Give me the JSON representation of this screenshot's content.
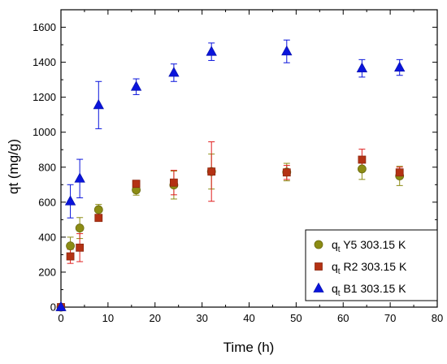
{
  "chart_data": {
    "type": "scatter",
    "title": "",
    "xlabel": "Time (h)",
    "ylabel": "qt (mg/g)",
    "xlim": [
      0,
      80
    ],
    "ylim": [
      0,
      1700
    ],
    "xticks": [
      0,
      10,
      20,
      30,
      40,
      50,
      60,
      70,
      80
    ],
    "yticks": [
      0,
      200,
      400,
      600,
      800,
      1000,
      1200,
      1400,
      1600
    ],
    "grid": false,
    "legend_position": "bottom-right",
    "series": [
      {
        "name_main": "q",
        "name_sub": "t",
        "name_rest": " Y5 303.15 K",
        "marker": "circle",
        "color": "#8c8c14",
        "edge": "#6b6b10",
        "points": [
          {
            "x": 0,
            "y": 0
          },
          {
            "x": 2,
            "y": 350,
            "err": 50
          },
          {
            "x": 4,
            "y": 452,
            "err": 60
          },
          {
            "x": 8,
            "y": 557,
            "err": 30
          },
          {
            "x": 16,
            "y": 670,
            "err": 30
          },
          {
            "x": 24,
            "y": 698,
            "err": 80
          },
          {
            "x": 32,
            "y": 775,
            "err": 100
          },
          {
            "x": 48,
            "y": 772,
            "err": 50
          },
          {
            "x": 64,
            "y": 790,
            "err": 60
          },
          {
            "x": 72,
            "y": 750,
            "err": 55
          }
        ]
      },
      {
        "name_main": "q",
        "name_sub": "t",
        "name_rest": " R2 303.15 K",
        "marker": "square",
        "color": "#b43214",
        "edge": "#8c2810",
        "err_color": "#e02020",
        "points": [
          {
            "x": 0,
            "y": 0
          },
          {
            "x": 2,
            "y": 290,
            "err": 40
          },
          {
            "x": 4,
            "y": 340,
            "err": 80
          },
          {
            "x": 8,
            "y": 510,
            "err": 20
          },
          {
            "x": 16,
            "y": 705,
            "err": 20
          },
          {
            "x": 24,
            "y": 712,
            "err": 70
          },
          {
            "x": 32,
            "y": 775,
            "err": 170
          },
          {
            "x": 48,
            "y": 770,
            "err": 40
          },
          {
            "x": 64,
            "y": 843,
            "err": 60
          },
          {
            "x": 72,
            "y": 770,
            "err": 30
          }
        ]
      },
      {
        "name_main": "q",
        "name_sub": "t",
        "name_rest": " B1 303.15 K",
        "marker": "triangle",
        "color": "#0a14dc",
        "edge": "#0a14b4",
        "points": [
          {
            "x": 0,
            "y": 0
          },
          {
            "x": 2,
            "y": 605,
            "err": 95
          },
          {
            "x": 4,
            "y": 735,
            "err": 110
          },
          {
            "x": 8,
            "y": 1155,
            "err": 135
          },
          {
            "x": 16,
            "y": 1260,
            "err": 45
          },
          {
            "x": 24,
            "y": 1340,
            "err": 50
          },
          {
            "x": 32,
            "y": 1460,
            "err": 50
          },
          {
            "x": 48,
            "y": 1462,
            "err": 65
          },
          {
            "x": 64,
            "y": 1365,
            "err": 50
          },
          {
            "x": 72,
            "y": 1370,
            "err": 45
          }
        ]
      }
    ]
  }
}
